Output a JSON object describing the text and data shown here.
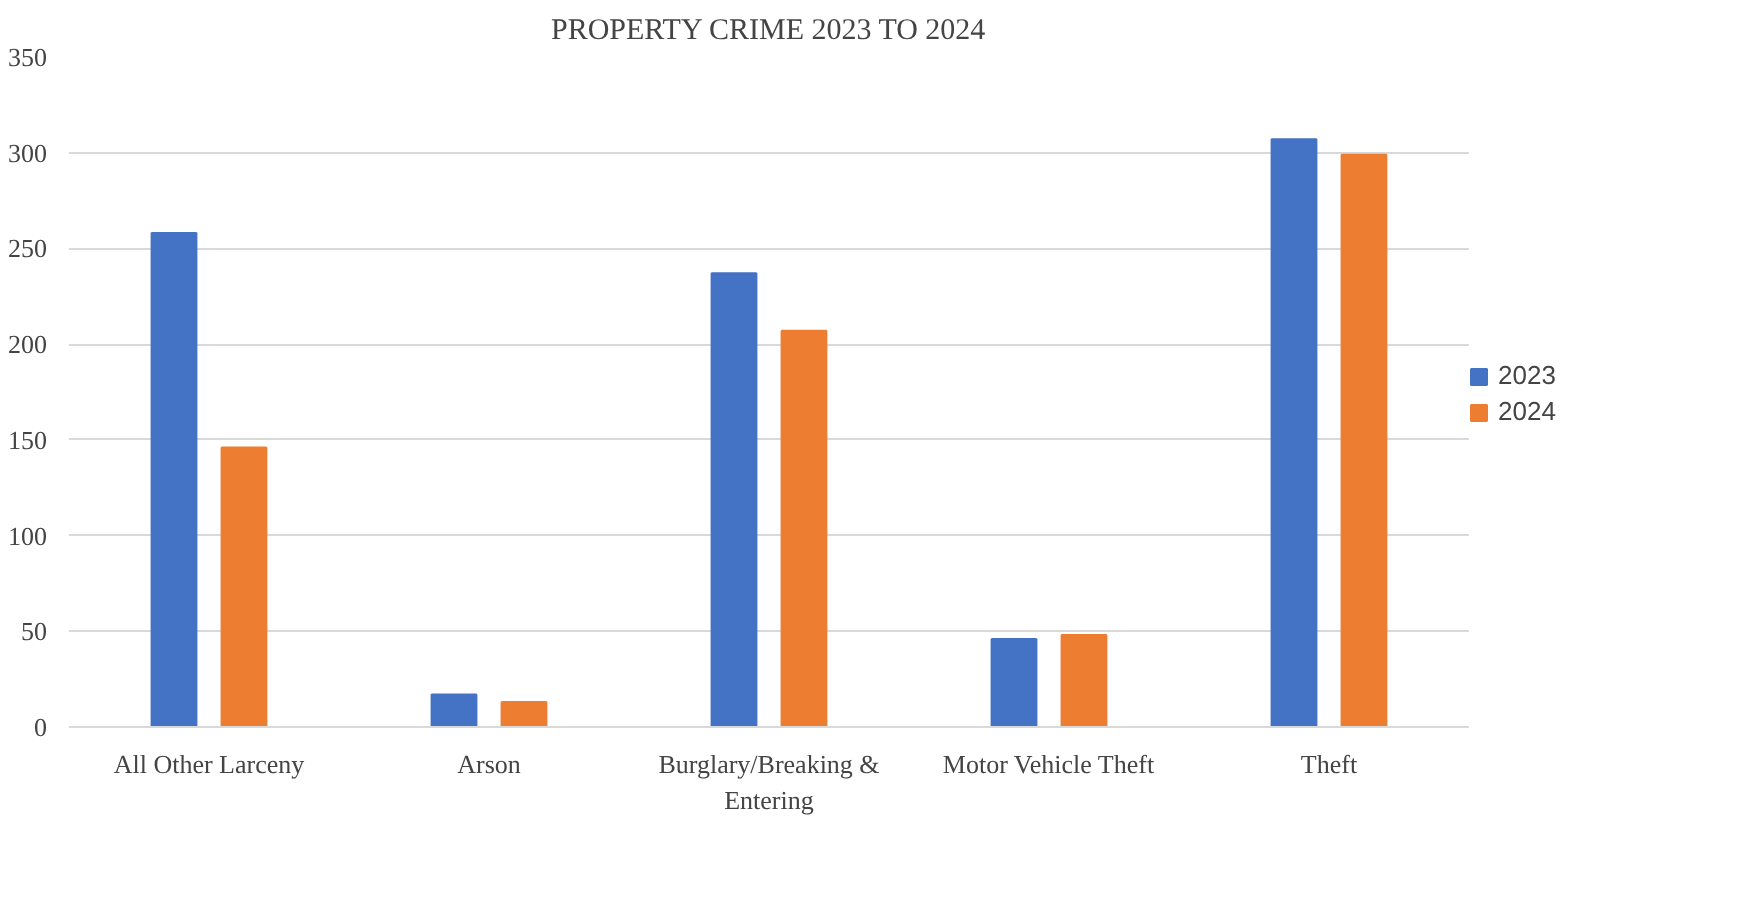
{
  "chart_data": {
    "type": "bar",
    "title": "PROPERTY CRIME 2023 TO 2024",
    "categories": [
      "All Other Larceny",
      "Arson",
      "Burglary/Breaking & Entering",
      "Motor Vehicle Theft",
      "Theft"
    ],
    "series": [
      {
        "name": "2023",
        "color": "#4472c4",
        "values": [
          258,
          17,
          237,
          46,
          307
        ]
      },
      {
        "name": "2024",
        "color": "#ed7d31",
        "values": [
          146,
          13,
          207,
          48,
          299
        ]
      }
    ],
    "ylim": [
      0,
      350
    ],
    "yticks": [
      0,
      50,
      100,
      150,
      200,
      250,
      300,
      350
    ],
    "grid": "y",
    "legend": "right"
  }
}
